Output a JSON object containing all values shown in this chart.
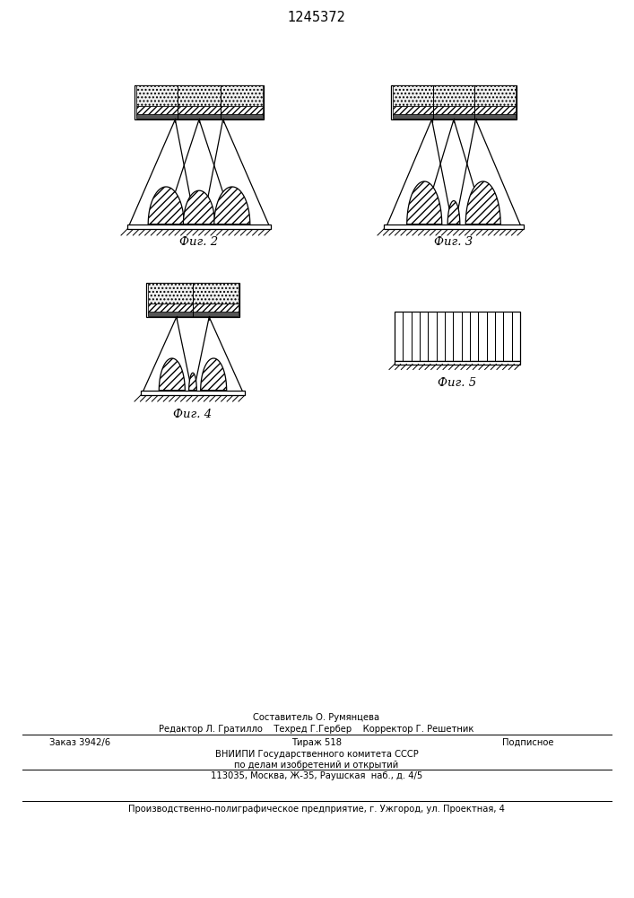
{
  "title": "1245372",
  "fig_labels": [
    "Фиг. 2",
    "Фиг. 3",
    "Фиг. 4",
    "Фиг. 5"
  ],
  "bg_color": "#ffffff",
  "line_color": "#000000",
  "footer_line1": "Составитель О. Румянцева",
  "footer_line2": "Редактор Л. Гратилло    Техред Г.Гербер    Корректор Г. Решетник",
  "footer_line4": "ВНИИПИ Государственного комитета СССР",
  "footer_line5": "по делам изобретений и открытий",
  "footer_line6": "113035, Москва, Ж-35, Раушская  наб., д. 4/5",
  "footer_line7": "Производственно-полиграфическое предприятие, г. Ужгород, ул. Проектная, 4"
}
